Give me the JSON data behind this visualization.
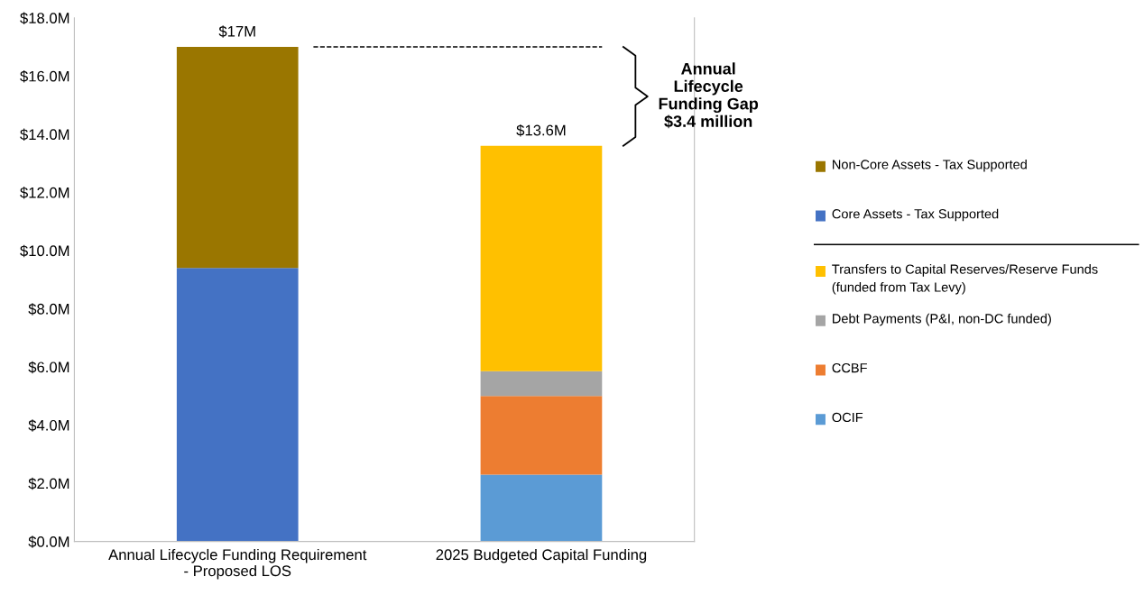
{
  "chart_data": {
    "type": "bar",
    "stacked": true,
    "categories": [
      "Annual Lifecycle Funding Requirement\n- Proposed LOS",
      "2025 Budgeted Capital Funding"
    ],
    "series": [
      {
        "name": "OCIF",
        "color": "#5b9bd5",
        "values": [
          null,
          2.3
        ]
      },
      {
        "name": "CCBF",
        "color": "#ed7d31",
        "values": [
          null,
          2.7
        ]
      },
      {
        "name": "Debt Payments (P&I, non-DC funded)",
        "color": "#a5a5a5",
        "values": [
          null,
          0.85
        ]
      },
      {
        "name": "Transfers to Capital Reserves/Reserve Funds\n(funded from Tax Levy)",
        "color": "#ffc000",
        "values": [
          null,
          7.75
        ]
      },
      {
        "name": "Core Assets - Tax Supported",
        "color": "#4472c4",
        "values": [
          9.4,
          null
        ]
      },
      {
        "name": "Non-Core Assets - Tax Supported",
        "color": "#9a7600",
        "values": [
          7.6,
          null
        ]
      }
    ],
    "totals": [
      "$17M",
      "$13.6M"
    ],
    "ylim": [
      0,
      18
    ],
    "yticks": [
      {
        "value": 0,
        "label": "$0.0M"
      },
      {
        "value": 2,
        "label": "$2.0M"
      },
      {
        "value": 4,
        "label": "$4.0M"
      },
      {
        "value": 6,
        "label": "$6.0M"
      },
      {
        "value": 8,
        "label": "$8.0M"
      },
      {
        "value": 10,
        "label": "$10.0M"
      },
      {
        "value": 12,
        "label": "$12.0M"
      },
      {
        "value": 14,
        "label": "$14.0M"
      },
      {
        "value": 16,
        "label": "$16.0M"
      },
      {
        "value": 18,
        "label": "$18.0M"
      }
    ],
    "ref_lines": [
      {
        "axis": "y",
        "value": 17,
        "line_style": "dashed",
        "color": "#000000"
      }
    ],
    "annotations": [
      "Annual\nLifecycle\nFunding Gap\n$3.4 million"
    ],
    "grid": false,
    "legend": "right"
  }
}
